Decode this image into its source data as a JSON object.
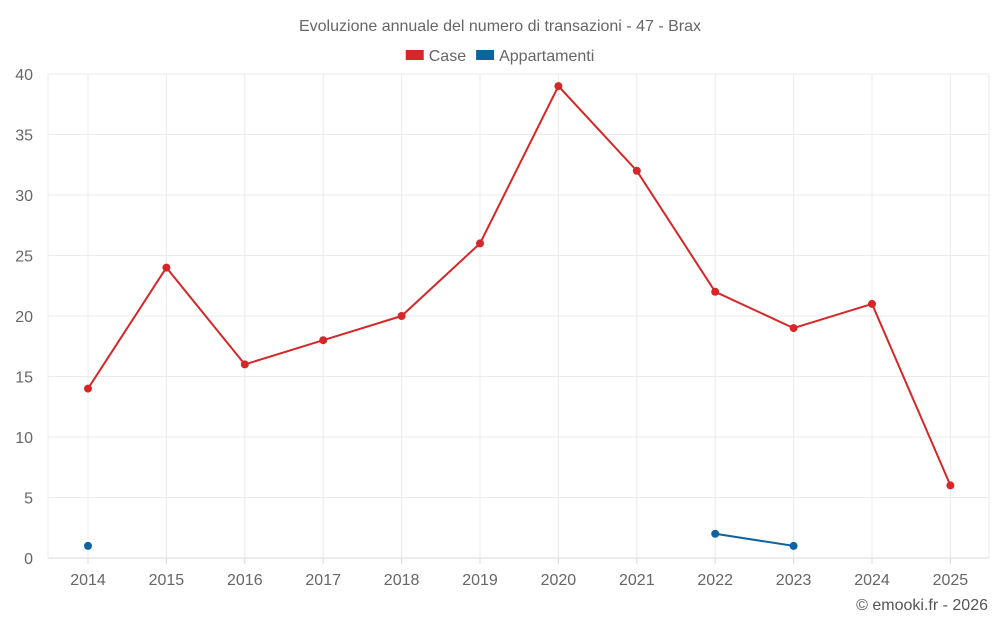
{
  "chart_data": {
    "type": "line",
    "title": "Evoluzione annuale del numero di transazioni - 47 - Brax",
    "categories": [
      "2014",
      "2015",
      "2016",
      "2017",
      "2018",
      "2019",
      "2020",
      "2021",
      "2022",
      "2023",
      "2024",
      "2025"
    ],
    "series": [
      {
        "name": "Case",
        "color": "#d62728",
        "values": [
          14,
          24,
          16,
          18,
          20,
          26,
          39,
          32,
          22,
          19,
          21,
          6
        ]
      },
      {
        "name": "Appartamenti",
        "color": "#0e64a0",
        "values": [
          1,
          null,
          null,
          null,
          null,
          null,
          null,
          null,
          2,
          1,
          null,
          null
        ]
      }
    ],
    "ylim": [
      0,
      40
    ],
    "yticks": [
      0,
      5,
      10,
      15,
      20,
      25,
      30,
      35,
      40
    ],
    "xlabel": "",
    "ylabel": "",
    "grid": true,
    "legend_position": "top-center"
  },
  "credit": "© emooki.fr - 2026"
}
